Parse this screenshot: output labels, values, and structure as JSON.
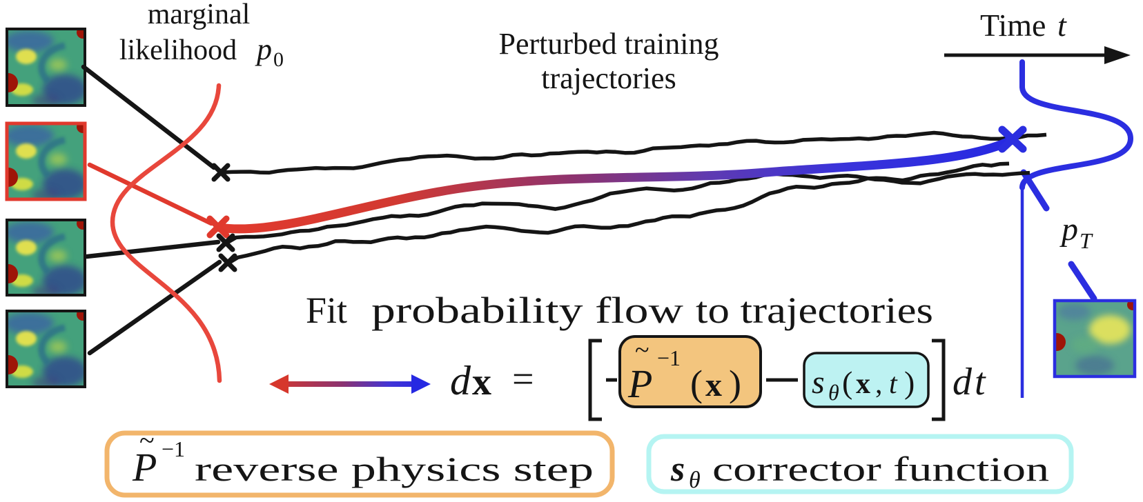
{
  "diagram": {
    "marginal": {
      "line1": "marginal",
      "line2": "likelihood",
      "p": "p",
      "sub": "0"
    },
    "perturbed": {
      "line1": "Perturbed training",
      "line2": "trajectories"
    },
    "time": {
      "label": "Time",
      "var": "t"
    },
    "pT": {
      "p": "p",
      "sub": "T"
    },
    "fit": {
      "prefix": "Fit",
      "gradient": "probability flow",
      "suffix": "to trajectories"
    },
    "equation": {
      "d": "d",
      "x": "x",
      "equals": "=",
      "lbracket": "[",
      "minus1": "−",
      "P": "P",
      "tilde": "~",
      "sup": "−1",
      "open": "(",
      "bx": "x",
      "close": ")",
      "minus2": "−",
      "s": "s",
      "theta": "θ",
      "open2": "(",
      "bx2": "x",
      "comma": ",",
      "t": "t",
      "close2": ")",
      "rbracket": "]",
      "dt_d": "d",
      "dt_t": "t"
    },
    "legend_physics": {
      "P": "P",
      "tilde": "~",
      "sup": "−1",
      "label": "reverse physics step"
    },
    "legend_corrector": {
      "s": "s",
      "sub": "θ",
      "label": "corrector function"
    },
    "colors": {
      "red": "#e0392d",
      "blue": "#2b2ee0",
      "purple": "#7a30a8",
      "orange_fill": "#f3c57e",
      "orange_border": "#f2b56b",
      "cyan_fill": "#bdf2f2",
      "cyan_border": "#b5f4f2",
      "black": "#151515"
    }
  }
}
